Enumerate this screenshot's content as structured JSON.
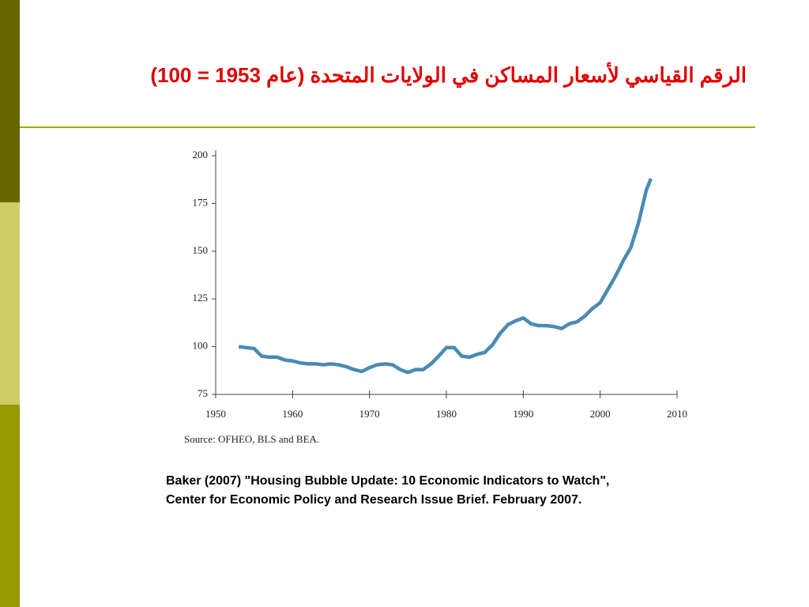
{
  "title": "الرقم القياسي لأسعار المساكن في الولايات المتحدة (عام 1953 = 100)",
  "citation": [
    "Baker (2007) \"Housing Bubble Update: 10 Economic Indicators to Watch\",",
    "Center for Economic Policy and Research Issue Brief. February 2007."
  ],
  "chart_data": {
    "type": "line",
    "source": "Source: OFHEO, BLS and BEA.",
    "x": [
      1953,
      1954,
      1955,
      1956,
      1957,
      1958,
      1959,
      1960,
      1961,
      1962,
      1963,
      1964,
      1965,
      1966,
      1967,
      1968,
      1969,
      1970,
      1971,
      1972,
      1973,
      1974,
      1975,
      1976,
      1977,
      1978,
      1979,
      1980,
      1981,
      1982,
      1983,
      1984,
      1985,
      1986,
      1987,
      1988,
      1989,
      1990,
      1991,
      1992,
      1993,
      1994,
      1995,
      1996,
      1997,
      1998,
      1999,
      2000,
      2001,
      2002,
      2003,
      2004,
      2005,
      2006,
      2006.6
    ],
    "series": [
      {
        "color": "#4a8ab2",
        "values": [
          100,
          99.5,
          99,
          95,
          94.5,
          94.5,
          93,
          92.5,
          91.5,
          91,
          91,
          90.5,
          91,
          90.5,
          89.5,
          88,
          87,
          89,
          90.5,
          91,
          90.5,
          88,
          86.5,
          88,
          88,
          91,
          95,
          99.5,
          99.5,
          95,
          94.5,
          96,
          97,
          101,
          107,
          111.5,
          113.5,
          115,
          112,
          111,
          111,
          110.5,
          109.5,
          112,
          113,
          116,
          120,
          123,
          130,
          137,
          145,
          152,
          165,
          182,
          188
        ]
      }
    ],
    "xlim": [
      1950,
      2010
    ],
    "ylim": [
      75,
      200
    ],
    "xticks": [
      1950,
      1960,
      1970,
      1980,
      1990,
      2000,
      2010
    ],
    "yticks": [
      75,
      100,
      125,
      150,
      175,
      200
    ]
  }
}
